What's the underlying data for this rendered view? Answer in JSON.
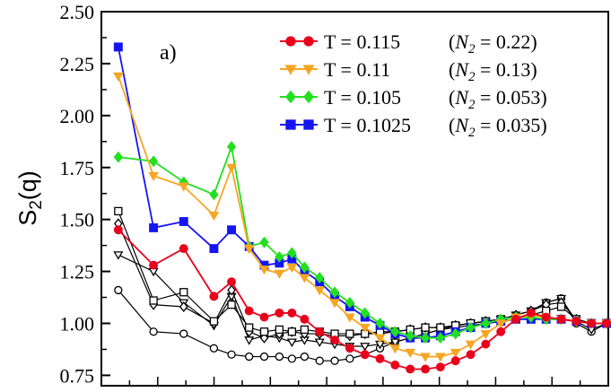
{
  "chart_data": {
    "type": "line",
    "title": "",
    "panel_label": "a)",
    "xlabel": "",
    "ylabel": "S",
    "ylabel_sub": "2",
    "ylabel_suffix": "(q)",
    "ylim": [
      0.7,
      2.5
    ],
    "xlim": [
      0,
      1
    ],
    "yticks": [
      "0.75",
      "1.00",
      "1.25",
      "1.50",
      "1.75",
      "2.00",
      "2.25",
      "2.50"
    ],
    "legend_position": "top-right",
    "series": [
      {
        "key": "red",
        "name": "T = 0.115",
        "n2": "0.22",
        "color": "#e8001c",
        "marker": "circle",
        "x": [
          0.03,
          0.1,
          0.16,
          0.22,
          0.255,
          0.29,
          0.32,
          0.35,
          0.375,
          0.4,
          0.43,
          0.46,
          0.49,
          0.52,
          0.55,
          0.58,
          0.61,
          0.64,
          0.67,
          0.7,
          0.73,
          0.76,
          0.79,
          0.82,
          0.85,
          0.88,
          0.91,
          0.94,
          0.97,
          1.0
        ],
        "y": [
          1.45,
          1.28,
          1.36,
          1.13,
          1.2,
          1.06,
          1.03,
          1.05,
          1.05,
          1.02,
          0.96,
          0.92,
          0.88,
          0.85,
          0.83,
          0.8,
          0.78,
          0.78,
          0.79,
          0.82,
          0.85,
          0.9,
          0.96,
          1.02,
          1.05,
          1.03,
          1.02,
          1.01,
          1.0,
          1.0
        ]
      },
      {
        "key": "orange",
        "name": "T = 0.11",
        "n2": "0.13",
        "color": "#f5a623",
        "marker": "triangle-down",
        "x": [
          0.03,
          0.1,
          0.16,
          0.22,
          0.255,
          0.29,
          0.32,
          0.35,
          0.375,
          0.4,
          0.43,
          0.46,
          0.49,
          0.52,
          0.55,
          0.58,
          0.61,
          0.64,
          0.67,
          0.7,
          0.73,
          0.76,
          0.79,
          0.82,
          0.85,
          0.88,
          0.91,
          0.94,
          0.97,
          1.0
        ],
        "y": [
          2.19,
          1.71,
          1.66,
          1.52,
          1.75,
          1.36,
          1.26,
          1.24,
          1.27,
          1.22,
          1.16,
          1.1,
          1.03,
          0.98,
          0.93,
          0.88,
          0.86,
          0.84,
          0.84,
          0.86,
          0.9,
          0.95,
          1.0,
          1.03,
          1.04,
          1.03,
          1.02,
          1.01,
          1.0,
          1.0
        ]
      },
      {
        "key": "green",
        "name": "T = 0.105",
        "n2": "0.053",
        "color": "#22e01f",
        "marker": "diamond",
        "x": [
          0.03,
          0.1,
          0.16,
          0.22,
          0.255,
          0.29,
          0.32,
          0.35,
          0.375,
          0.4,
          0.43,
          0.46,
          0.49,
          0.52,
          0.55,
          0.58,
          0.61,
          0.64,
          0.67,
          0.7,
          0.73,
          0.76,
          0.79,
          0.82,
          0.85,
          0.88,
          0.91,
          0.94,
          0.97,
          1.0
        ],
        "y": [
          1.8,
          1.78,
          1.68,
          1.62,
          1.85,
          1.37,
          1.39,
          1.32,
          1.34,
          1.27,
          1.22,
          1.15,
          1.1,
          1.05,
          1.0,
          0.96,
          0.94,
          0.93,
          0.93,
          0.95,
          0.98,
          1.0,
          1.02,
          1.03,
          1.03,
          1.02,
          1.02,
          1.01,
          1.0,
          1.0
        ]
      },
      {
        "key": "blue",
        "name": "T = 0.1025",
        "n2": "0.035",
        "color": "#1515f2",
        "marker": "square",
        "x": [
          0.03,
          0.1,
          0.16,
          0.22,
          0.255,
          0.29,
          0.32,
          0.35,
          0.375,
          0.4,
          0.43,
          0.46,
          0.49,
          0.52,
          0.55,
          0.58,
          0.61,
          0.64,
          0.67,
          0.7,
          0.73,
          0.76,
          0.79,
          0.82,
          0.85,
          0.88,
          0.91,
          0.94,
          0.97,
          1.0
        ],
        "y": [
          2.33,
          1.46,
          1.49,
          1.36,
          1.45,
          1.37,
          1.28,
          1.29,
          1.31,
          1.25,
          1.2,
          1.13,
          1.08,
          1.03,
          0.99,
          0.95,
          0.93,
          0.93,
          0.94,
          0.96,
          0.98,
          1.0,
          1.01,
          1.02,
          1.02,
          1.02,
          1.02,
          1.01,
          1.0,
          1.0
        ]
      },
      {
        "key": "black-square",
        "name": "",
        "color": "#000000",
        "marker": "square-open",
        "x": [
          0.03,
          0.1,
          0.16,
          0.22,
          0.255,
          0.29,
          0.32,
          0.35,
          0.375,
          0.4,
          0.43,
          0.46,
          0.49,
          0.52,
          0.55,
          0.58,
          0.61,
          0.64,
          0.67,
          0.7,
          0.73,
          0.76,
          0.79,
          0.82,
          0.85,
          0.88,
          0.91,
          0.94,
          0.97,
          1.0
        ],
        "y": [
          1.54,
          1.11,
          1.15,
          1.01,
          1.09,
          0.98,
          0.96,
          0.97,
          0.96,
          0.97,
          0.96,
          0.95,
          0.95,
          0.95,
          0.96,
          0.96,
          0.97,
          0.98,
          0.98,
          0.99,
          1.0,
          1.01,
          1.02,
          1.03,
          1.04,
          1.06,
          1.08,
          1.02,
          1.0,
          1.0
        ]
      },
      {
        "key": "black-diamond",
        "name": "",
        "color": "#000000",
        "marker": "diamond-open",
        "x": [
          0.03,
          0.1,
          0.16,
          0.22,
          0.255,
          0.29,
          0.32,
          0.35,
          0.375,
          0.4,
          0.43,
          0.46,
          0.49,
          0.52,
          0.55,
          0.58,
          0.61,
          0.64,
          0.67,
          0.7,
          0.73,
          0.76,
          0.79,
          0.82,
          0.85,
          0.88,
          0.91,
          0.94,
          0.97,
          1.0
        ],
        "y": [
          1.48,
          1.09,
          1.08,
          1.0,
          1.16,
          0.96,
          0.93,
          0.95,
          0.96,
          0.95,
          0.95,
          0.94,
          0.94,
          0.95,
          0.95,
          0.96,
          0.97,
          0.98,
          0.98,
          0.99,
          1.0,
          1.01,
          1.02,
          1.04,
          1.06,
          1.09,
          1.1,
          1.02,
          1.0,
          1.0
        ]
      },
      {
        "key": "black-triangle",
        "name": "",
        "color": "#000000",
        "marker": "triangle-open",
        "x": [
          0.03,
          0.1,
          0.16,
          0.22,
          0.255,
          0.29,
          0.32,
          0.35,
          0.375,
          0.4,
          0.43,
          0.46,
          0.49,
          0.52,
          0.55,
          0.58,
          0.61,
          0.64,
          0.67,
          0.7,
          0.73,
          0.76,
          0.79,
          0.82,
          0.85,
          0.88,
          0.91,
          0.94,
          0.97,
          1.0
        ],
        "y": [
          1.33,
          1.25,
          1.1,
          0.99,
          1.13,
          0.92,
          0.94,
          0.93,
          0.91,
          0.92,
          0.91,
          0.9,
          0.89,
          0.89,
          0.9,
          0.91,
          0.93,
          0.95,
          0.97,
          0.99,
          1.0,
          1.01,
          1.02,
          1.04,
          1.06,
          1.1,
          1.12,
          1.01,
          0.97,
          1.0
        ]
      },
      {
        "key": "black-circle",
        "name": "",
        "color": "#000000",
        "marker": "circle-open",
        "x": [
          0.03,
          0.1,
          0.16,
          0.22,
          0.255,
          0.29,
          0.32,
          0.35,
          0.375,
          0.4,
          0.43,
          0.46,
          0.49,
          0.52,
          0.55,
          0.58,
          0.61,
          0.64,
          0.67,
          0.7,
          0.73,
          0.76,
          0.79,
          0.82,
          0.85,
          0.88,
          0.91,
          0.94,
          0.97,
          1.0
        ],
        "y": [
          1.16,
          0.96,
          0.95,
          0.88,
          0.85,
          0.84,
          0.84,
          0.84,
          0.83,
          0.84,
          0.82,
          0.82,
          0.83,
          0.85,
          0.88,
          0.91,
          0.93,
          0.95,
          0.97,
          0.98,
          0.99,
          1.0,
          1.01,
          1.04,
          1.06,
          1.1,
          1.12,
          1.0,
          0.96,
          1.0
        ]
      }
    ]
  }
}
